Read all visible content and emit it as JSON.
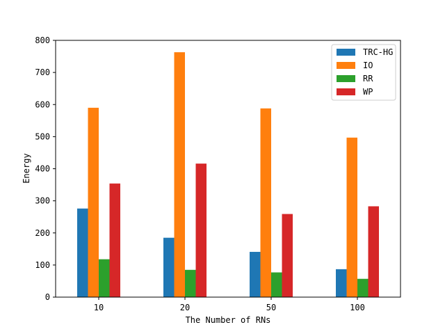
{
  "chart_data": {
    "type": "bar",
    "title": "",
    "xlabel": "The Number of RNs",
    "ylabel": "Energy",
    "categories": [
      "10",
      "20",
      "50",
      "100"
    ],
    "ylim": [
      0,
      800
    ],
    "yticks": [
      0,
      100,
      200,
      300,
      400,
      500,
      600,
      700,
      800
    ],
    "grid": false,
    "legend_position": "top-right",
    "series": [
      {
        "name": "TRC-HG",
        "color": "#1f77b4",
        "values": [
          276,
          185,
          141,
          87
        ]
      },
      {
        "name": "IO",
        "color": "#ff7f0e",
        "values": [
          590,
          763,
          588,
          497
        ]
      },
      {
        "name": "RR",
        "color": "#2ca02c",
        "values": [
          118,
          85,
          77,
          57
        ]
      },
      {
        "name": "WP",
        "color": "#d62728",
        "values": [
          354,
          416,
          259,
          283
        ]
      }
    ]
  }
}
